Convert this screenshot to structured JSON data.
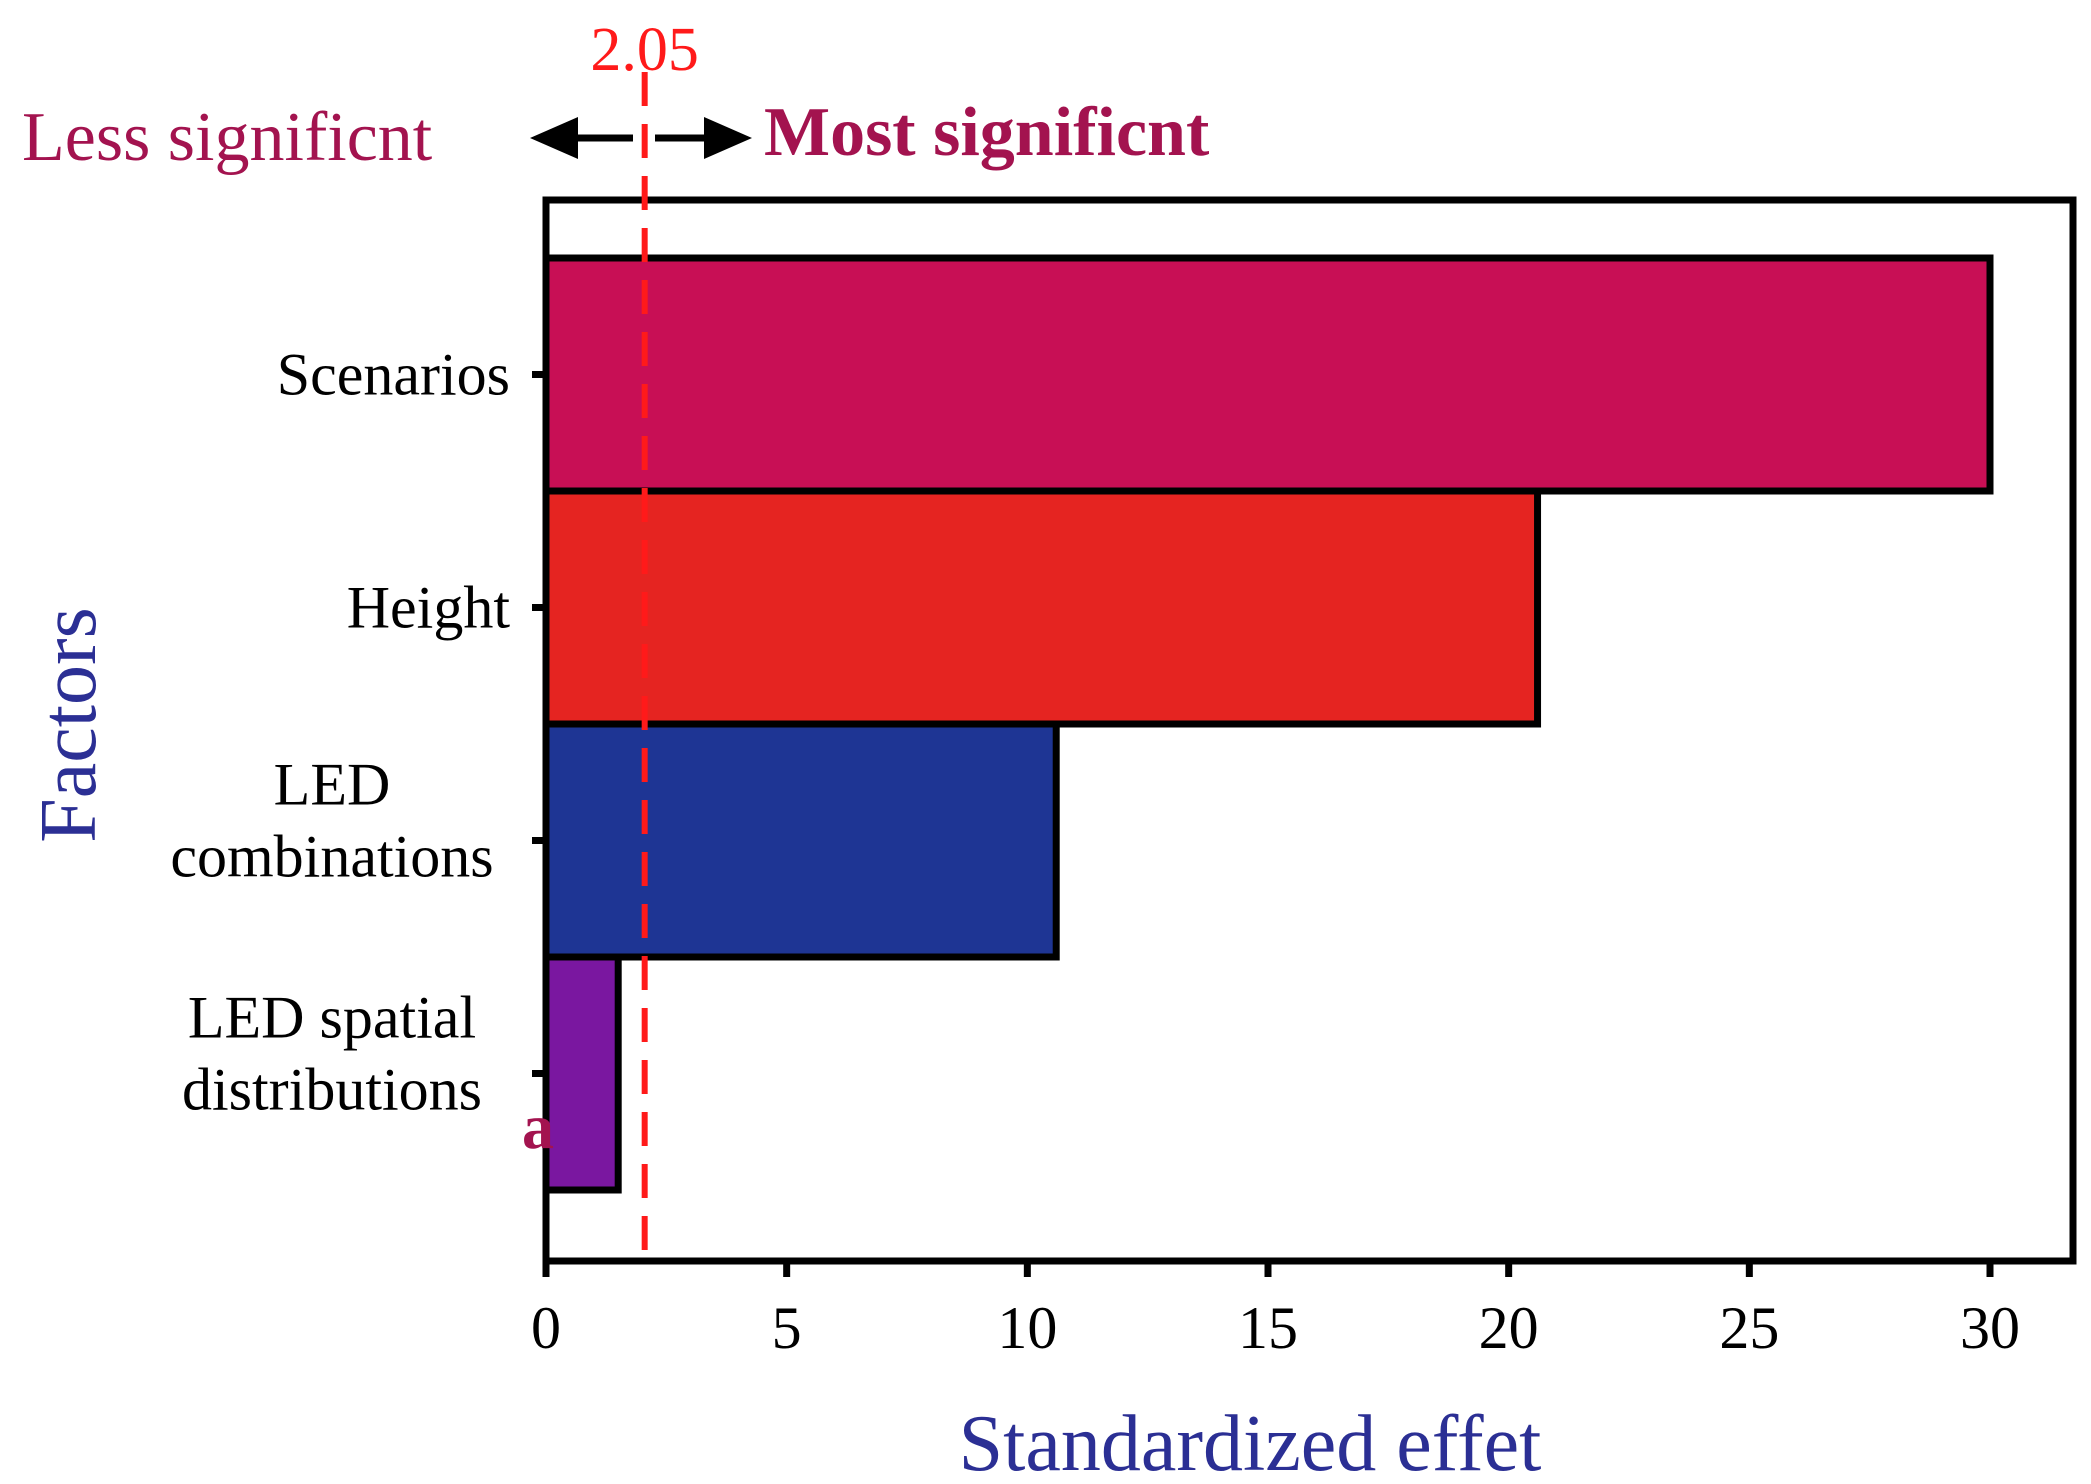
{
  "chart_data": {
    "type": "bar",
    "orientation": "horizontal",
    "categories": [
      {
        "lines": [
          "Scenarios"
        ],
        "value": 30.0,
        "color": "#c80f55"
      },
      {
        "lines": [
          "Height"
        ],
        "value": 20.6,
        "color": "#e52421"
      },
      {
        "lines": [
          "LED",
          "combinations"
        ],
        "value": 10.6,
        "color": "#1e3594"
      },
      {
        "lines": [
          "LED spatial",
          "distributions"
        ],
        "value": 1.5,
        "color": "#7a17a0"
      }
    ],
    "xlabel": "Standardized effet",
    "ylabel": "Factors",
    "xlim": [
      0,
      31.8
    ],
    "xticks": [
      "0",
      "5",
      "10",
      "15",
      "20",
      "25",
      "30"
    ],
    "threshold": {
      "value": 2.05,
      "label": "2.05",
      "color": "#ff1a1a"
    },
    "annotations": {
      "less": "Less significnt",
      "most": "Most significnt",
      "panel_label": "a"
    },
    "colors": {
      "title_blue": "#2b2f94",
      "annotation_magenta": "#a3134f"
    }
  }
}
